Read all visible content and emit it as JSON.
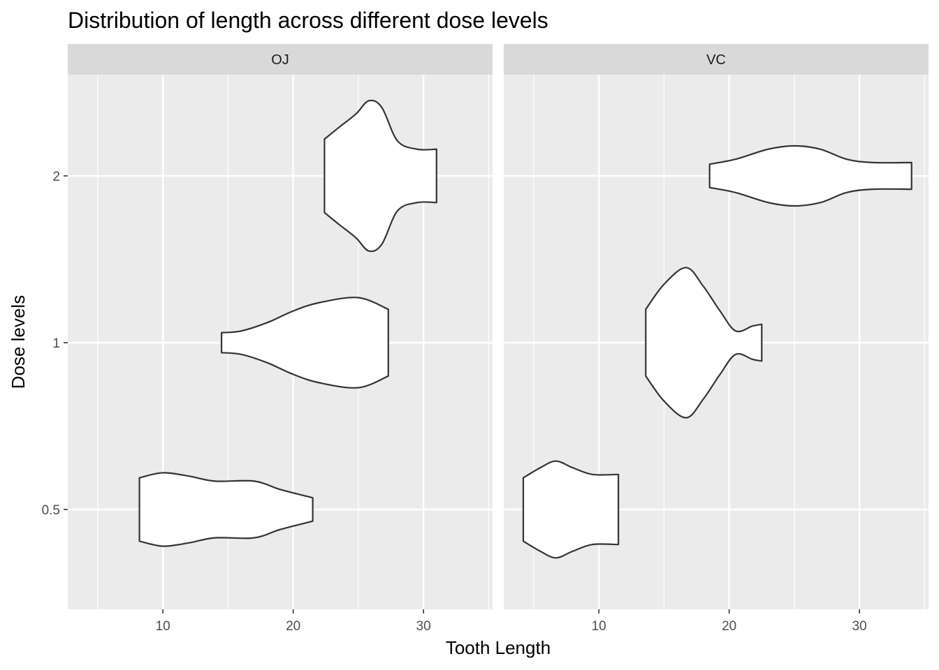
{
  "chart_data": {
    "type": "violin",
    "title": "Distribution of length across different dose levels",
    "xlabel": "Tooth Length",
    "ylabel": "Dose levels",
    "x_ticks": [
      10,
      20,
      30
    ],
    "x_range": [
      2.7,
      35.3
    ],
    "y_categories": [
      "0.5",
      "1",
      "2"
    ],
    "facet_colors": {
      "panel": "#ebebeb",
      "strip": "#d9d9d9",
      "grid": "#ffffff",
      "outline": "#333333",
      "fill": "#ffffff"
    },
    "facets": [
      {
        "name": "OJ",
        "violins": [
          {
            "dose": "0.5",
            "profile": [
              [
                8.2,
                0.19
              ],
              [
                10,
                0.22
              ],
              [
                12,
                0.2
              ],
              [
                14,
                0.17
              ],
              [
                17,
                0.17
              ],
              [
                19,
                0.12
              ],
              [
                21.5,
                0.07
              ]
            ]
          },
          {
            "dose": "1",
            "profile": [
              [
                14.5,
                0.06
              ],
              [
                16,
                0.07
              ],
              [
                18,
                0.12
              ],
              [
                20,
                0.19
              ],
              [
                22,
                0.24
              ],
              [
                25,
                0.27
              ],
              [
                27.3,
                0.2
              ]
            ]
          },
          {
            "dose": "2",
            "profile": [
              [
                22.4,
                0.22
              ],
              [
                23.5,
                0.29
              ],
              [
                24.8,
                0.37
              ],
              [
                25.8,
                0.45
              ],
              [
                26.8,
                0.41
              ],
              [
                28,
                0.21
              ],
              [
                29.5,
                0.16
              ],
              [
                31,
                0.16
              ]
            ]
          }
        ]
      },
      {
        "name": "VC",
        "violins": [
          {
            "dose": "0.5",
            "profile": [
              [
                4.2,
                0.19
              ],
              [
                5.5,
                0.25
              ],
              [
                6.7,
                0.29
              ],
              [
                8,
                0.25
              ],
              [
                9.5,
                0.21
              ],
              [
                11.5,
                0.21
              ]
            ]
          },
          {
            "dose": "1",
            "profile": [
              [
                13.6,
                0.2
              ],
              [
                15,
                0.35
              ],
              [
                16.7,
                0.45
              ],
              [
                18,
                0.34
              ],
              [
                19.3,
                0.19
              ],
              [
                20.5,
                0.07
              ],
              [
                21.8,
                0.1
              ],
              [
                22.5,
                0.11
              ]
            ]
          },
          {
            "dose": "2",
            "profile": [
              [
                18.5,
                0.07
              ],
              [
                20.5,
                0.1
              ],
              [
                23,
                0.16
              ],
              [
                25,
                0.18
              ],
              [
                27,
                0.16
              ],
              [
                29,
                0.1
              ],
              [
                31,
                0.08
              ],
              [
                34,
                0.08
              ]
            ]
          }
        ]
      }
    ]
  }
}
